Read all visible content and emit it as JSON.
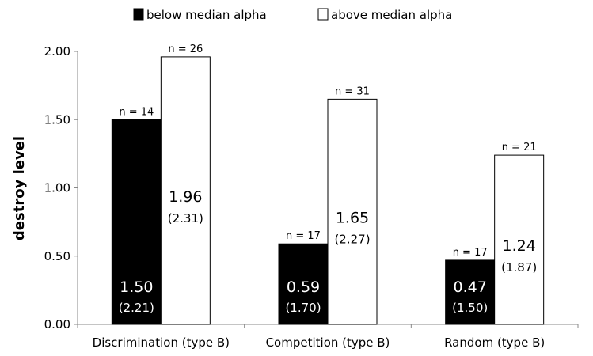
{
  "chart_data": {
    "type": "bar",
    "ylabel": "destroy level",
    "xlabel": "",
    "ylim": [
      0,
      2.0
    ],
    "yticks": [
      "0.00",
      "0.50",
      "1.00",
      "1.50",
      "2.00"
    ],
    "yticks_values": [
      0,
      0.5,
      1.0,
      1.5,
      2.0
    ],
    "grid": false,
    "legend_position": "top",
    "categories": [
      "Discrimination (type B)",
      "Competition (type B)",
      "Random (type B)"
    ],
    "series": [
      {
        "name": "below median alpha",
        "color": "#000000",
        "values": [
          1.5,
          0.59,
          0.47
        ],
        "value_labels": [
          "1.50",
          "0.59",
          "0.47"
        ],
        "sd_labels": [
          "(2.21)",
          "(1.70)",
          "(1.50)"
        ],
        "n_labels": [
          "n = 14",
          "n = 17",
          "n = 17"
        ]
      },
      {
        "name": "above median alpha",
        "color": "#ffffff",
        "values": [
          1.96,
          1.65,
          1.24
        ],
        "value_labels": [
          "1.96",
          "1.65",
          "1.24"
        ],
        "sd_labels": [
          "(2.31)",
          "(2.27)",
          "(1.87)"
        ],
        "n_labels": [
          "n = 26",
          "n = 31",
          "n = 21"
        ]
      }
    ]
  }
}
